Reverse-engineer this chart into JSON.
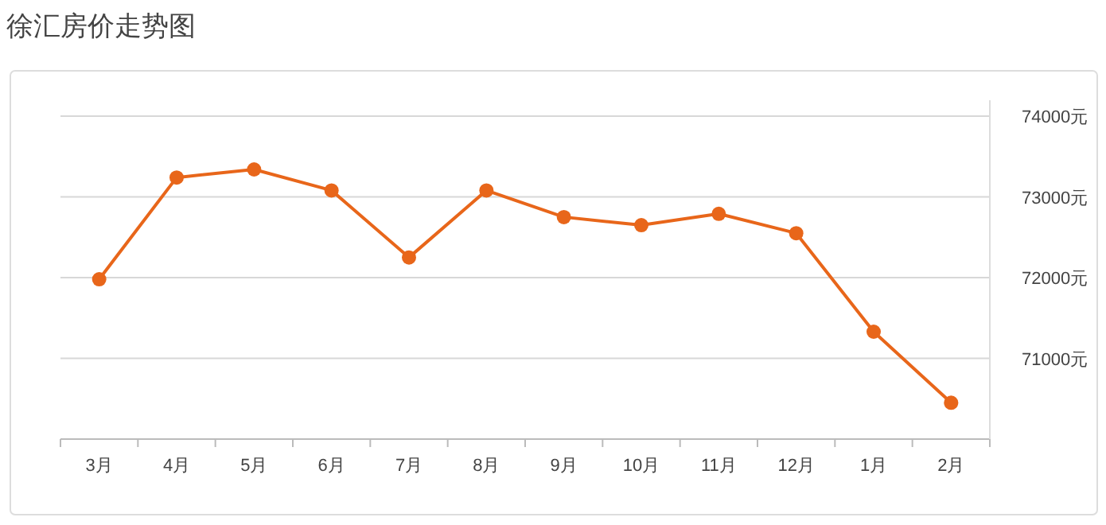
{
  "chart_data": {
    "type": "line",
    "title": "徐汇房价走势图",
    "categories": [
      "3月",
      "4月",
      "5月",
      "6月",
      "7月",
      "8月",
      "9月",
      "10月",
      "11月",
      "12月",
      "1月",
      "2月"
    ],
    "series": [
      {
        "color": "#e8661a",
        "values": [
          71980,
          73240,
          73340,
          73080,
          72250,
          73080,
          72750,
          72650,
          72790,
          72550,
          71330,
          70450
        ]
      }
    ],
    "ylim": [
      70000,
      74000
    ],
    "yticks": [
      {
        "value": 71000,
        "label": "71000元"
      },
      {
        "value": 72000,
        "label": "72000元"
      },
      {
        "value": 73000,
        "label": "73000元"
      },
      {
        "value": 74000,
        "label": "74000元"
      }
    ],
    "grid": "y",
    "marker": "circle",
    "line_style": "solid"
  }
}
